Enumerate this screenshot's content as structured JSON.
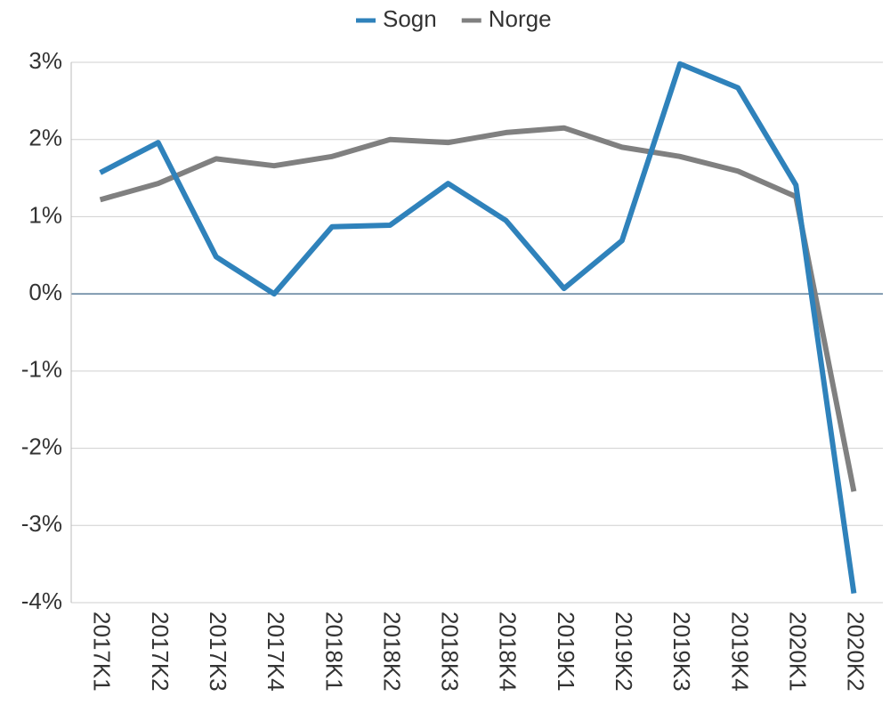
{
  "chart_data": {
    "type": "line",
    "categories": [
      "2017K1",
      "2017K2",
      "2017K3",
      "2017K4",
      "2018K1",
      "2018K2",
      "2018K3",
      "2018K4",
      "2019K1",
      "2019K2",
      "2019K3",
      "2019K4",
      "2020K1",
      "2020K2"
    ],
    "series": [
      {
        "name": "Sogn",
        "color": "#2f82bb",
        "values": [
          1.57,
          1.96,
          0.48,
          0.0,
          0.87,
          0.89,
          1.43,
          0.95,
          0.07,
          0.69,
          2.98,
          2.67,
          1.41,
          -3.88
        ]
      },
      {
        "name": "Norge",
        "color": "#808080",
        "values": [
          1.22,
          1.43,
          1.75,
          1.66,
          1.78,
          2.0,
          1.96,
          2.09,
          2.15,
          1.9,
          1.78,
          1.59,
          1.26,
          -2.56
        ]
      }
    ],
    "ylim": [
      -4,
      3
    ],
    "yticks": [
      {
        "value": -4,
        "label": "-4%"
      },
      {
        "value": -3,
        "label": "-3%"
      },
      {
        "value": -2,
        "label": "-2%"
      },
      {
        "value": -1,
        "label": "-1%"
      },
      {
        "value": 0,
        "label": "0%"
      },
      {
        "value": 1,
        "label": "1%"
      },
      {
        "value": 2,
        "label": "2%"
      },
      {
        "value": 3,
        "label": "3%"
      }
    ],
    "grid": true,
    "legend": "top"
  }
}
